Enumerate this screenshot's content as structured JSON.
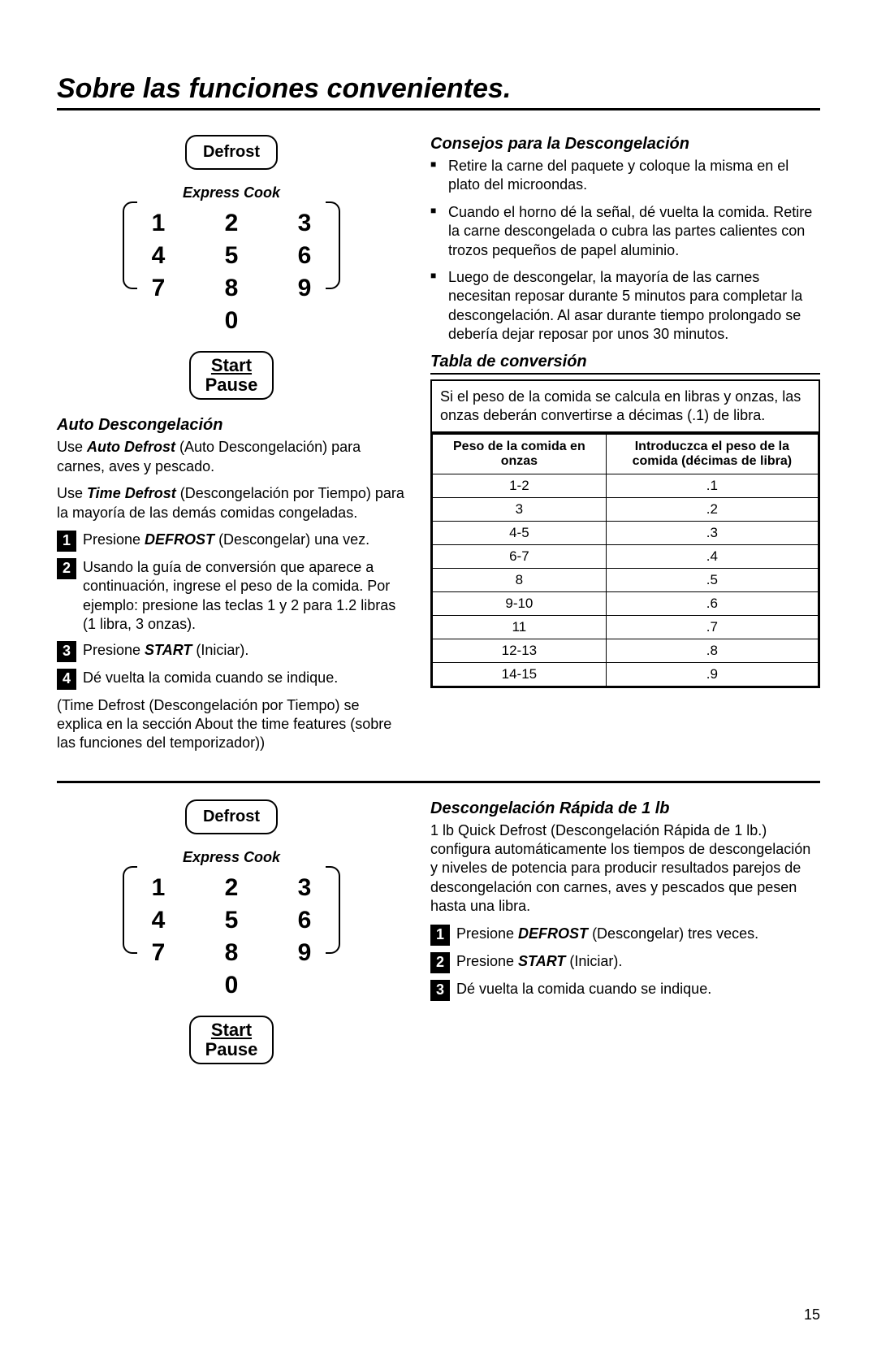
{
  "title": "Sobre las funciones convenientes.",
  "keypad": {
    "defrost": "Defrost",
    "express": "Express Cook",
    "nums": [
      "1",
      "2",
      "3",
      "4",
      "5",
      "6",
      "7",
      "8",
      "9",
      "0"
    ],
    "start": "Start",
    "pause": "Pause"
  },
  "auto": {
    "heading": "Auto Descongelación",
    "p1a": "Use ",
    "p1b": "Auto Defrost",
    "p1c": " (Auto Descongelación) para carnes, aves y pescado.",
    "p2a": "Use ",
    "p2b": "Time Defrost",
    "p2c": " (Descongelación por Tiempo) para la mayoría de las demás comidas congeladas.",
    "s1a": "Presione ",
    "s1b": "DEFROST",
    "s1c": " (Descongelar) una vez.",
    "s2": "Usando la guía de conversión que aparece a continuación, ingrese el peso de la comida. Por ejemplo: presione las teclas 1 y 2 para 1.2 libras (1 libra, 3 onzas).",
    "s3a": "Presione ",
    "s3b": "START",
    "s3c": " (Iniciar).",
    "s4": "Dé vuelta la comida cuando se indique.",
    "note": "(Time Defrost (Descongelación por Tiempo) se explica en la sección About the time features (sobre las funciones del temporizador))"
  },
  "tips": {
    "heading": "Consejos para la Descongelación",
    "b1": "Retire la carne del paquete y coloque la misma en el plato del microondas.",
    "b2": "Cuando el horno dé la señal, dé vuelta la comida. Retire la carne descongelada o cubra las partes calientes con trozos pequeños de papel aluminio.",
    "b3": "Luego de descongelar, la mayoría de las carnes necesitan reposar durante 5 minutos para completar la descongelación. Al asar durante tiempo prolongado se debería dejar reposar por unos 30 minutos."
  },
  "table": {
    "heading": "Tabla de conversión",
    "caption": "Si el peso de la comida se calcula en libras y onzas, las onzas deberán convertirse a décimas (.1) de libra.",
    "col1": "Peso de la comida en onzas",
    "col2": "Introduczca el peso de la comida (décimas de libra)",
    "rows": [
      [
        "1-2",
        ".1"
      ],
      [
        "3",
        ".2"
      ],
      [
        "4-5",
        ".3"
      ],
      [
        "6-7",
        ".4"
      ],
      [
        "8",
        ".5"
      ],
      [
        "9-10",
        ".6"
      ],
      [
        "11",
        ".7"
      ],
      [
        "12-13",
        ".8"
      ],
      [
        "14-15",
        ".9"
      ]
    ]
  },
  "quick": {
    "heading": "Descongelación Rápida de 1 lb",
    "p1": "1 lb Quick Defrost (Descongelación Rápida de 1 lb.) configura automáticamente los tiempos de descongelación y niveles de potencia para producir resultados parejos de descongelación con carnes, aves y pescados que pesen  hasta una libra.",
    "s1a": "Presione ",
    "s1b": "DEFROST",
    "s1c": " (Descongelar) tres veces.",
    "s2a": "Presione ",
    "s2b": "START",
    "s2c": " (Iniciar).",
    "s3": "Dé vuelta la comida cuando se indique."
  },
  "pagenum": "15"
}
